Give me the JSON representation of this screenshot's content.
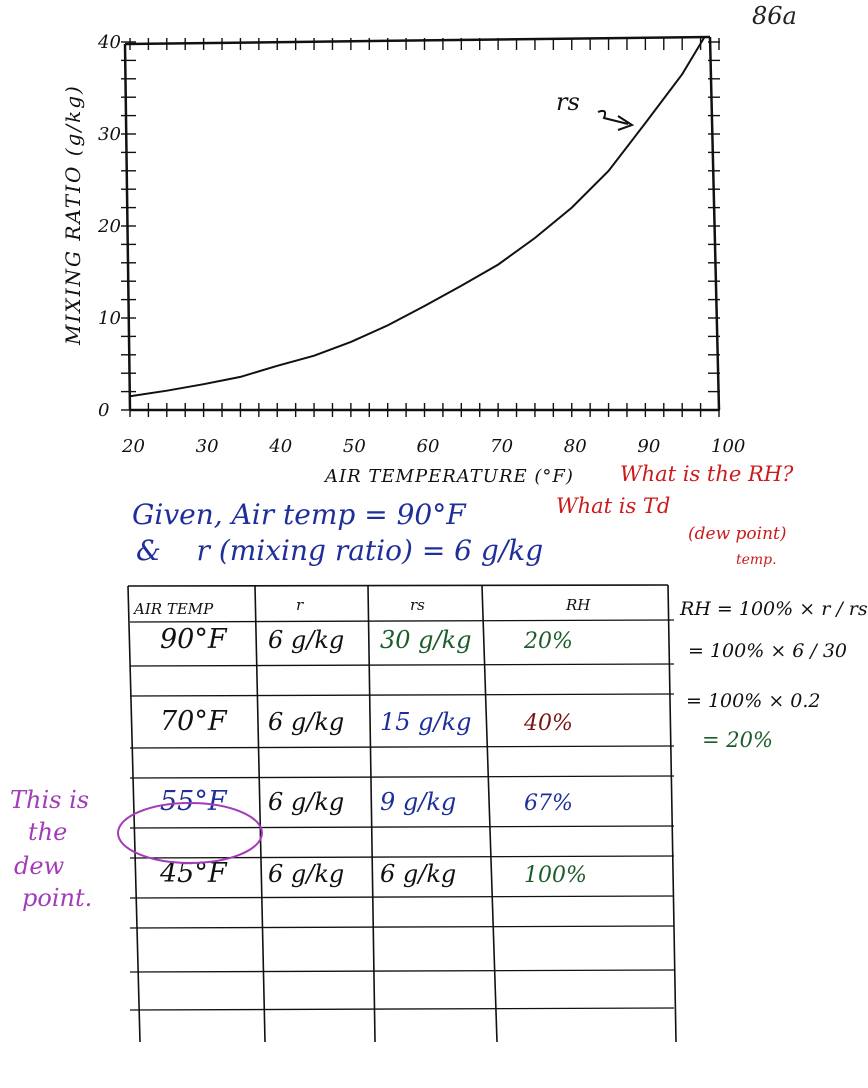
{
  "page_number": "86a",
  "chart_data": {
    "type": "line",
    "title": "",
    "xlabel": "AIR TEMPERATURE (°F)",
    "ylabel": "MIXING RATIO (g/kg)",
    "xlim": [
      20,
      100
    ],
    "ylim": [
      0,
      40
    ],
    "x_ticks": [
      "20",
      "30",
      "40",
      "50",
      "60",
      "70",
      "80",
      "90",
      "100"
    ],
    "y_ticks": [
      "0",
      "10",
      "20",
      "30",
      "40"
    ],
    "series": [
      {
        "name": "rs",
        "x": [
          20,
          25,
          30,
          35,
          40,
          45,
          50,
          55,
          60,
          65,
          70,
          75,
          80,
          85,
          90,
          95,
          98
        ],
        "y": [
          1.5,
          2.1,
          2.8,
          3.6,
          4.8,
          5.9,
          7.4,
          9.2,
          11.3,
          13.5,
          15.8,
          18.7,
          22.0,
          26.0,
          31.2,
          36.5,
          40.5
        ]
      }
    ],
    "annotations": [
      {
        "text": "rs"
      }
    ],
    "grid": false
  },
  "given": {
    "word": "Given",
    "line1": "Air temp = 90°F",
    "line2": "r (mixing ratio) = 6 g/kg"
  },
  "questions": [
    "What is the RH?",
    "What is Td",
    "(dew point)",
    "temp."
  ],
  "table": {
    "headers": [
      "AIR TEMP",
      "r",
      "rs",
      "RH"
    ],
    "rows": [
      {
        "temp": "90°F",
        "r": "6 g/kg",
        "rs": "30 g/kg",
        "rh": "20%",
        "temp_color": "#111111",
        "rs_color": "#1d5c2a",
        "rh_color": "#1d5c2a"
      },
      {
        "temp": "70°F",
        "r": "6 g/kg",
        "rs": "15 g/kg",
        "rh": "40%",
        "temp_color": "#111111",
        "rs_color": "#1f2f9a",
        "rh_color": "#7a1414"
      },
      {
        "temp": "55°F",
        "r": "6 g/kg",
        "rs": "9 g/kg",
        "rh": "67%",
        "temp_color": "#1f2f9a",
        "rs_color": "#1f2f9a",
        "rh_color": "#1f2f9a"
      },
      {
        "temp": "45°F",
        "r": "6 g/kg",
        "rs": "6 g/kg",
        "rh": "100%",
        "temp_color": "#111111",
        "rs_color": "#111111",
        "rh_color": "#1d5c2a"
      }
    ]
  },
  "calculation": {
    "line1": "RH = 100% × r / rs",
    "line2": "= 100% × 6 / 30",
    "line3": "= 100% × 0.2",
    "line4": "= 20%"
  },
  "dew_note": [
    "This is",
    "the",
    "dew",
    "point."
  ],
  "colors": {
    "blue": "#1f2f9a",
    "red": "#cc1b1b",
    "green": "#1d5c2a",
    "maroon": "#7a1414",
    "purple": "#a23cb8",
    "ink": "#111111"
  }
}
